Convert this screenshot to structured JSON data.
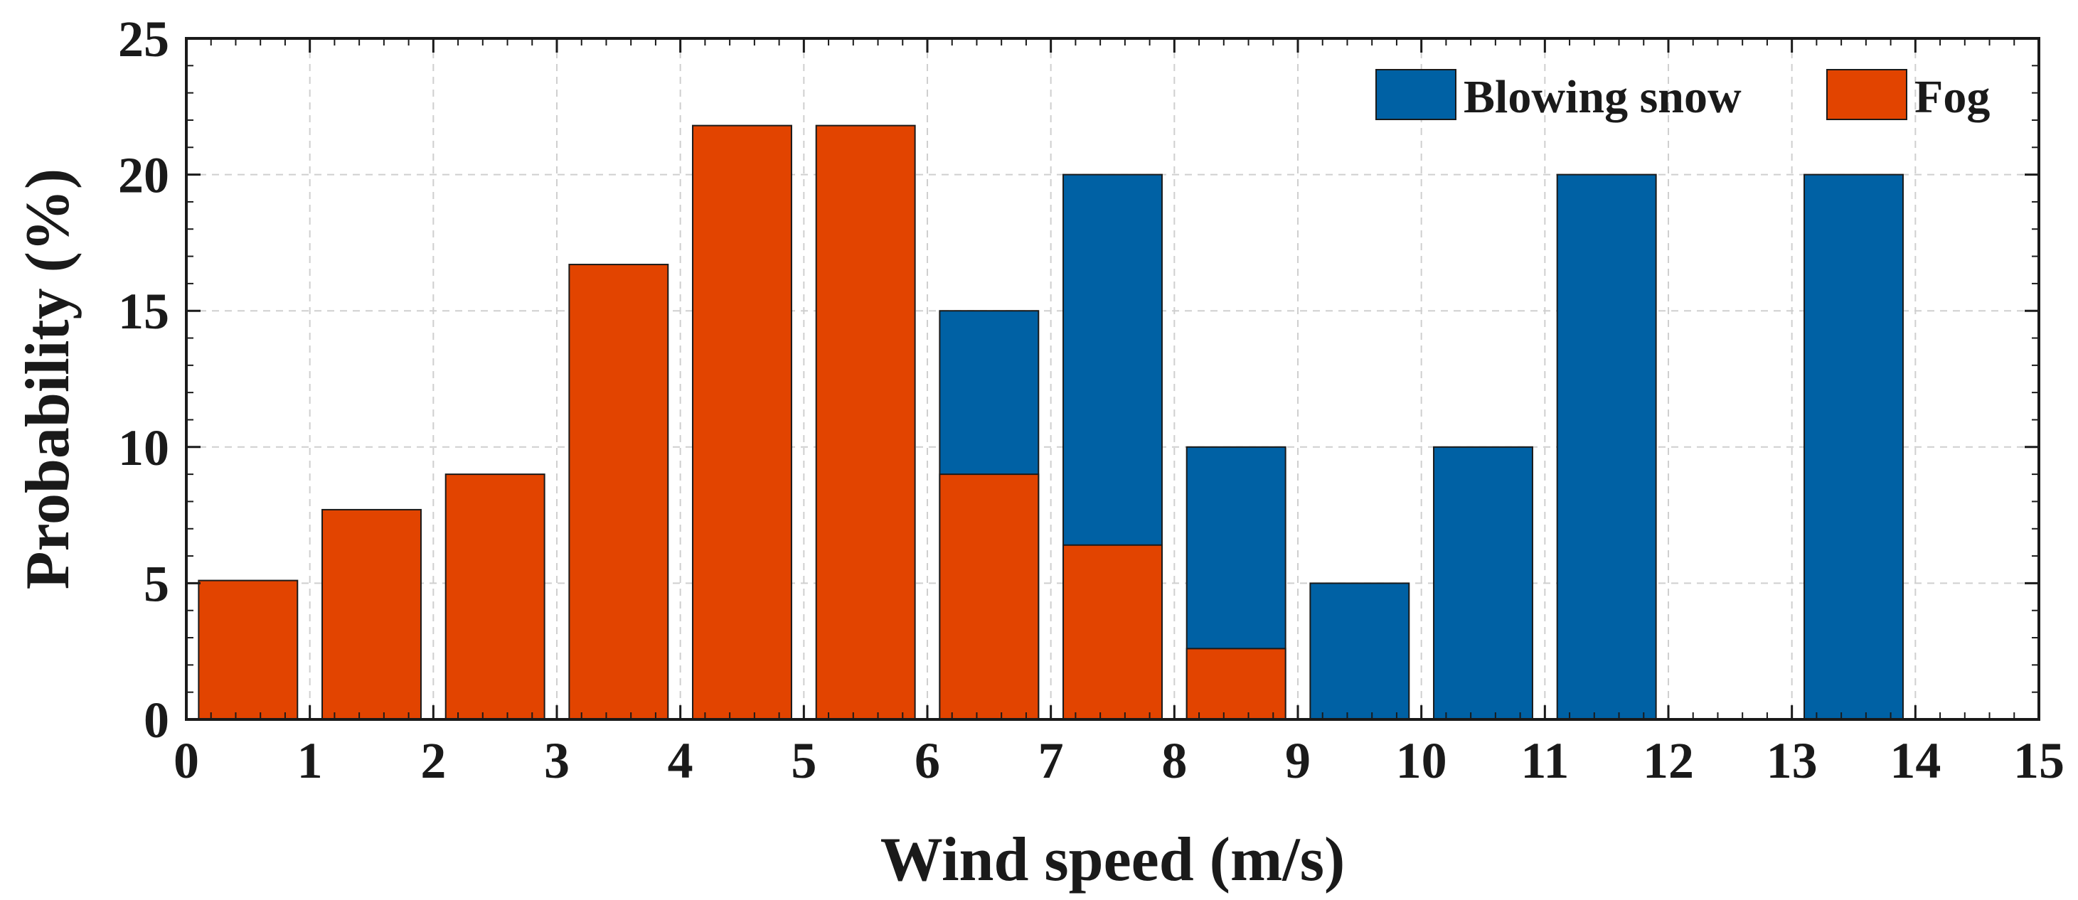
{
  "chart_data": {
    "type": "bar",
    "title": "",
    "xlabel": "Wind speed (m/s)",
    "ylabel": "Probability (%)",
    "xlim": [
      0,
      15
    ],
    "ylim": [
      0,
      25
    ],
    "xticks": [
      0,
      1,
      2,
      3,
      4,
      5,
      6,
      7,
      8,
      9,
      10,
      11,
      12,
      13,
      14,
      15
    ],
    "yticks": [
      0,
      5,
      10,
      15,
      20,
      25
    ],
    "grid": true,
    "legend_position": "top-right",
    "bar_centers": [
      0.5,
      1.5,
      2.5,
      3.5,
      4.5,
      5.5,
      6.5,
      7.5,
      8.5,
      9.5,
      10.5,
      11.5,
      12.5,
      13.5,
      14.5
    ],
    "series": [
      {
        "name": "Blowing snow",
        "color": "#0061a4",
        "values": [
          0,
          0,
          0,
          0,
          0,
          0,
          15,
          20,
          10,
          5,
          10,
          20,
          0,
          20,
          0
        ]
      },
      {
        "name": "Fog",
        "color": "#e24400",
        "values": [
          5.1,
          7.7,
          9,
          16.7,
          21.8,
          21.8,
          9,
          6.4,
          2.6,
          0,
          0,
          0,
          0,
          0,
          0
        ]
      }
    ],
    "draw_order": "Blowing snow behind Fog (overlaid, not stacked)"
  }
}
